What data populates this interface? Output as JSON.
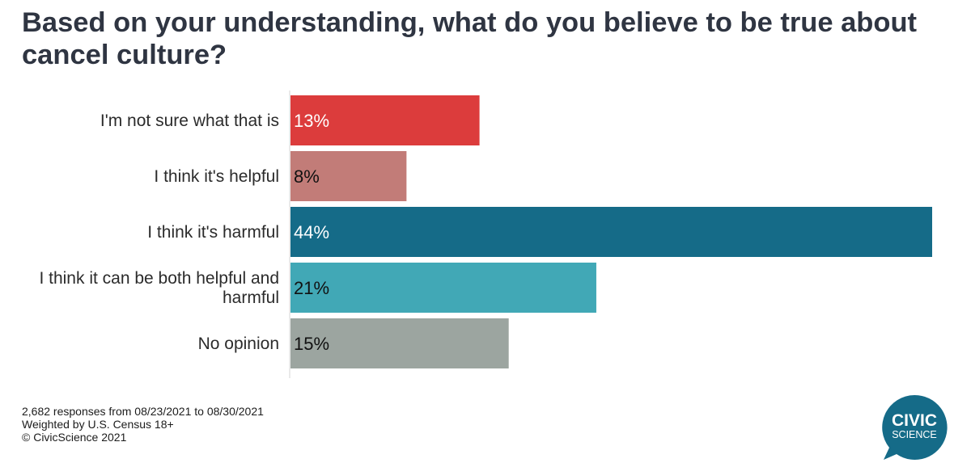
{
  "chart_data": {
    "type": "bar",
    "orientation": "horizontal",
    "title": "Based on your understanding, what do you believe to be true about cancel culture?",
    "categories": [
      [
        "I'm not sure what that is"
      ],
      [
        "I think it's helpful"
      ],
      [
        "I think it's harmful"
      ],
      [
        "I think it can be both helpful and",
        "harmful"
      ],
      [
        "No opinion"
      ]
    ],
    "values": [
      13,
      8,
      44,
      21,
      15
    ],
    "value_labels": [
      "13%",
      "8%",
      "44%",
      "21%",
      "15%"
    ],
    "bar_colors": [
      "#dc3c3c",
      "#c27c78",
      "#156b88",
      "#41a8b6",
      "#9ca5a0"
    ],
    "label_colors": [
      "#ffffff",
      "#111111",
      "#ffffff",
      "#111111",
      "#111111"
    ],
    "xlim": [
      0,
      44
    ],
    "xlabel": "",
    "ylabel": "",
    "grid": false,
    "legend": "none"
  },
  "footer": {
    "lines": [
      "2,682 responses from 08/23/2021 to 08/30/2021",
      "Weighted by U.S. Census 18+",
      "© CivicScience 2021"
    ]
  },
  "logo": {
    "line1": "CIVIC",
    "line2": "SCIENCE",
    "color": "#156b88"
  }
}
